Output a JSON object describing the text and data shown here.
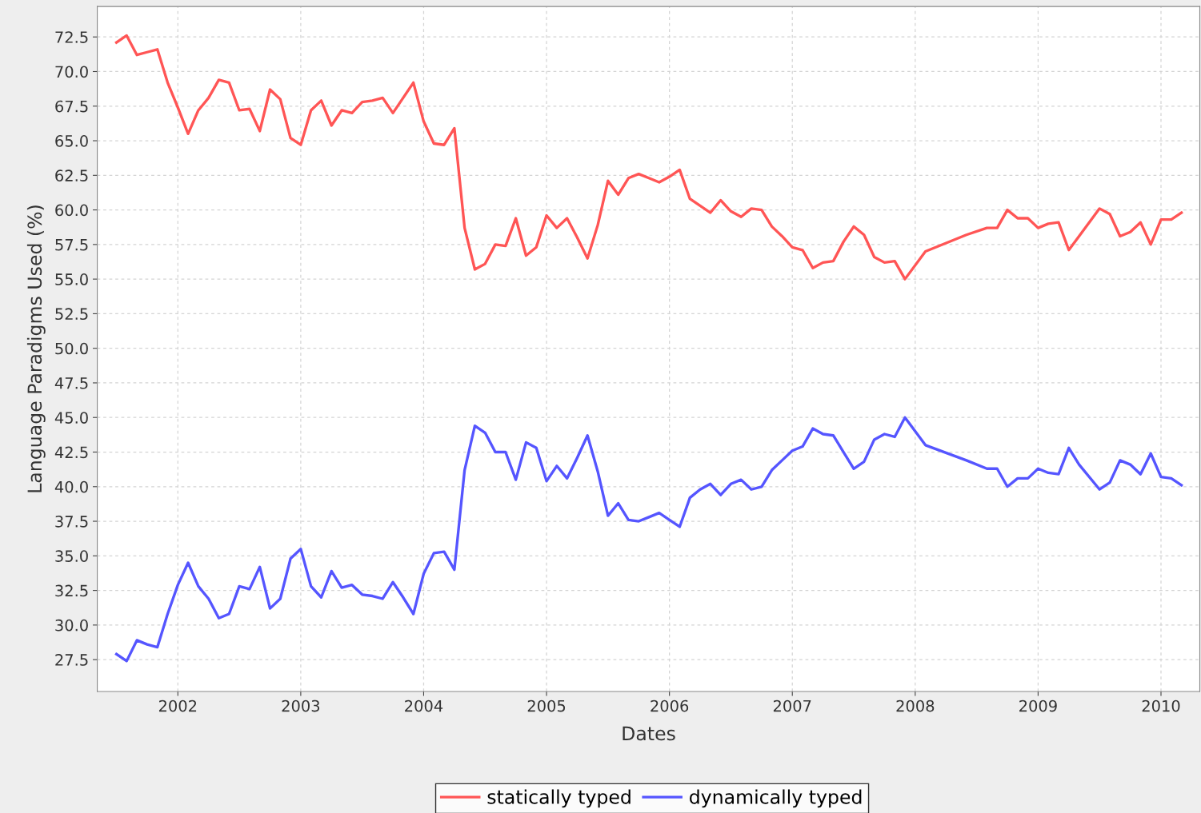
{
  "chart_data": {
    "type": "line",
    "xlabel": "Dates",
    "ylabel": "Language Paradigms Used (%)",
    "x": [
      "2001-07",
      "2001-08",
      "2001-09",
      "2001-10",
      "2001-11",
      "2001-12",
      "2002-01",
      "2002-02",
      "2002-03",
      "2002-04",
      "2002-05",
      "2002-06",
      "2002-07",
      "2002-08",
      "2002-09",
      "2002-10",
      "2002-11",
      "2002-12",
      "2003-01",
      "2003-02",
      "2003-03",
      "2003-04",
      "2003-05",
      "2003-06",
      "2003-07",
      "2003-08",
      "2003-09",
      "2003-10",
      "2003-11",
      "2003-12",
      "2004-01",
      "2004-02",
      "2004-03",
      "2004-04",
      "2004-05",
      "2004-06",
      "2004-07",
      "2004-08",
      "2004-09",
      "2004-10",
      "2004-11",
      "2004-12",
      "2005-01",
      "2005-02",
      "2005-03",
      "2005-04",
      "2005-05",
      "2005-06",
      "2005-07",
      "2005-08",
      "2005-09",
      "2005-10",
      "2005-11",
      "2005-12",
      "2006-01",
      "2006-02",
      "2006-03",
      "2006-04",
      "2006-05",
      "2006-06",
      "2006-07",
      "2006-08",
      "2006-09",
      "2006-10",
      "2006-11",
      "2006-12",
      "2007-01",
      "2007-02",
      "2007-03",
      "2007-04",
      "2007-05",
      "2007-06",
      "2007-07",
      "2007-08",
      "2007-09",
      "2007-10",
      "2007-11",
      "2007-12",
      "2008-02",
      "2008-06",
      "2008-08",
      "2008-09",
      "2008-10",
      "2008-11",
      "2008-12",
      "2009-01",
      "2009-02",
      "2009-03",
      "2009-04",
      "2009-05",
      "2009-07",
      "2009-08",
      "2009-09",
      "2009-10",
      "2009-11",
      "2009-12",
      "2010-01",
      "2010-02",
      "2010-03"
    ],
    "series": [
      {
        "name": "statically typed",
        "color": "#ff5555",
        "values": [
          72.1,
          72.6,
          71.2,
          71.4,
          71.6,
          69.2,
          67.4,
          65.5,
          67.2,
          68.1,
          69.4,
          69.2,
          67.2,
          67.3,
          65.7,
          68.7,
          68.0,
          65.2,
          64.7,
          67.2,
          67.9,
          66.1,
          67.2,
          67.0,
          67.8,
          67.9,
          68.1,
          67.0,
          68.1,
          69.2,
          66.4,
          64.8,
          64.7,
          65.9,
          58.7,
          55.7,
          56.1,
          57.5,
          57.4,
          59.4,
          56.7,
          57.3,
          59.6,
          58.7,
          59.4,
          58.0,
          56.5,
          58.9,
          62.1,
          61.1,
          62.3,
          62.6,
          62.3,
          62.0,
          62.4,
          62.9,
          60.8,
          60.3,
          59.8,
          60.7,
          59.9,
          59.5,
          60.1,
          60.0,
          58.8,
          58.1,
          57.3,
          57.1,
          55.8,
          56.2,
          56.3,
          57.7,
          58.8,
          58.2,
          56.6,
          56.2,
          56.3,
          55.0,
          57.0,
          58.2,
          58.7,
          58.7,
          60.0,
          59.4,
          59.4,
          58.7,
          59.0,
          59.1,
          57.1,
          58.1,
          60.1,
          59.7,
          58.1,
          58.4,
          59.1,
          57.5,
          59.3,
          59.3,
          59.8
        ]
      },
      {
        "name": "dynamically typed",
        "color": "#5555ff",
        "values": [
          27.9,
          27.4,
          28.9,
          28.6,
          28.4,
          30.8,
          32.9,
          34.5,
          32.8,
          31.9,
          30.5,
          30.8,
          32.8,
          32.6,
          34.2,
          31.2,
          31.9,
          34.8,
          35.5,
          32.8,
          32.0,
          33.9,
          32.7,
          32.9,
          32.2,
          32.1,
          31.9,
          33.1,
          32.0,
          30.8,
          33.7,
          35.2,
          35.3,
          34.0,
          41.2,
          44.4,
          43.9,
          42.5,
          42.5,
          40.5,
          43.2,
          42.8,
          40.4,
          41.5,
          40.6,
          42.1,
          43.7,
          41.1,
          37.9,
          38.8,
          37.6,
          37.5,
          37.8,
          38.1,
          37.6,
          37.1,
          39.2,
          39.8,
          40.2,
          39.4,
          40.2,
          40.5,
          39.8,
          40.0,
          41.2,
          41.9,
          42.6,
          42.9,
          44.2,
          43.8,
          43.7,
          42.5,
          41.3,
          41.8,
          43.4,
          43.8,
          43.6,
          45.0,
          43.0,
          41.9,
          41.3,
          41.3,
          40.0,
          40.6,
          40.6,
          41.3,
          41.0,
          40.9,
          42.8,
          41.6,
          39.8,
          40.3,
          41.9,
          41.6,
          40.9,
          42.4,
          40.7,
          40.6,
          40.1
        ]
      }
    ],
    "xlim": [
      "2001-05-05",
      "2010-04-25"
    ],
    "xticks": [
      {
        "value": "2002",
        "label": "2002"
      },
      {
        "value": "2003",
        "label": "2003"
      },
      {
        "value": "2004",
        "label": "2004"
      },
      {
        "value": "2005",
        "label": "2005"
      },
      {
        "value": "2006",
        "label": "2006"
      },
      {
        "value": "2007",
        "label": "2007"
      },
      {
        "value": "2008",
        "label": "2008"
      },
      {
        "value": "2009",
        "label": "2009"
      },
      {
        "value": "2010",
        "label": "2010"
      }
    ],
    "ylim": [
      25.2,
      74.7
    ],
    "yticks": [
      {
        "value": 27.5,
        "label": "27.5"
      },
      {
        "value": 30,
        "label": "30.0"
      },
      {
        "value": 32.5,
        "label": "32.5"
      },
      {
        "value": 35,
        "label": "35.0"
      },
      {
        "value": 37.5,
        "label": "37.5"
      },
      {
        "value": 40,
        "label": "40.0"
      },
      {
        "value": 42.5,
        "label": "42.5"
      },
      {
        "value": 45,
        "label": "45.0"
      },
      {
        "value": 47.5,
        "label": "47.5"
      },
      {
        "value": 50,
        "label": "50.0"
      },
      {
        "value": 52.5,
        "label": "52.5"
      },
      {
        "value": 55,
        "label": "55.0"
      },
      {
        "value": 57.5,
        "label": "57.5"
      },
      {
        "value": 60,
        "label": "60.0"
      },
      {
        "value": 62.5,
        "label": "62.5"
      },
      {
        "value": 65,
        "label": "65.0"
      },
      {
        "value": 67.5,
        "label": "67.5"
      },
      {
        "value": 70,
        "label": "70.0"
      },
      {
        "value": 72.5,
        "label": "72.5"
      }
    ],
    "grid": true,
    "legend": "bottom",
    "marker": "none",
    "line_style": "solid"
  }
}
